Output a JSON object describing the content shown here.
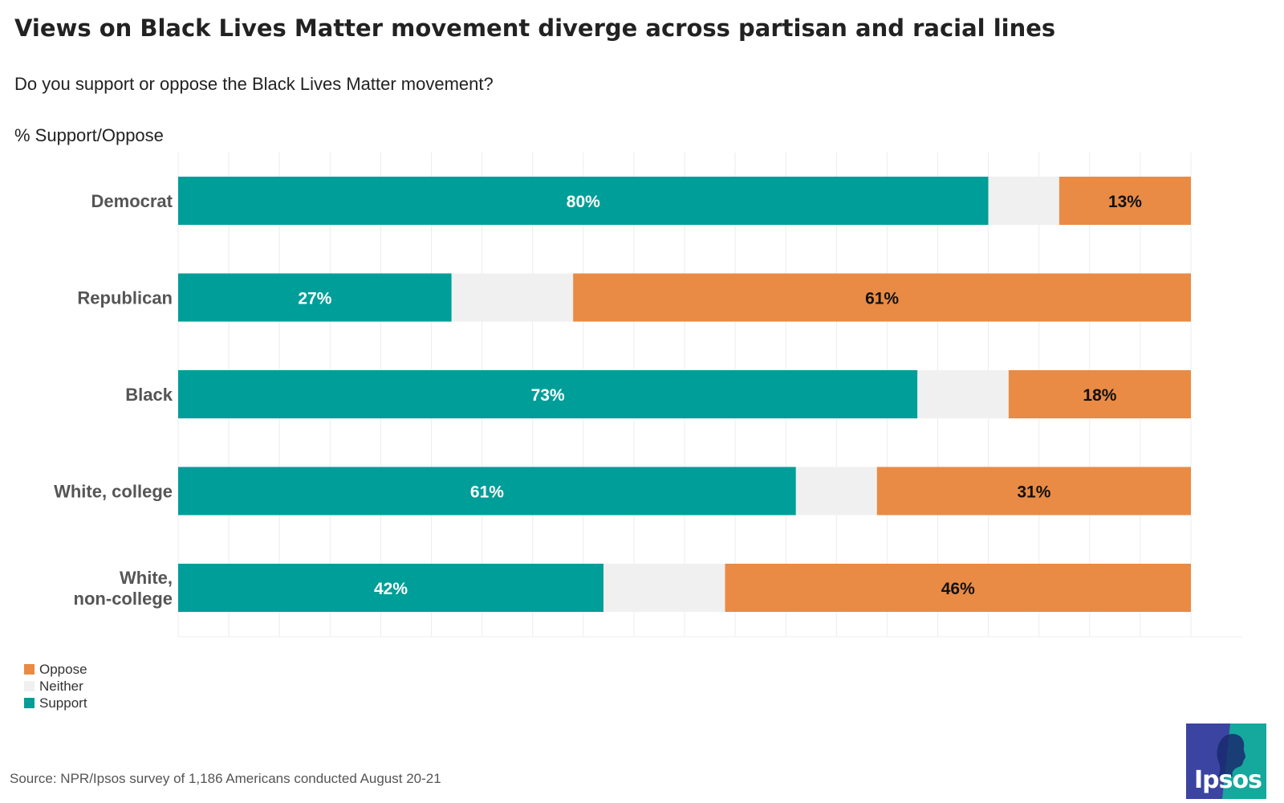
{
  "title": "Views on Black Lives Matter movement diverge across partisan and racial lines",
  "subtitle": "Do you support or oppose the Black Lives Matter movement?",
  "unit_label": "% Support/Oppose",
  "source": "Source: NPR/Ipsos survey of 1,186 Americans conducted August 20-21",
  "logo_text": "Ipsos",
  "colors": {
    "support": "#009e99",
    "neither": "#f0f0f0",
    "oppose": "#e98b45",
    "logo_left": "#3b44a0",
    "logo_right": "#15a89d"
  },
  "legend": [
    {
      "name": "Oppose",
      "color": "#e98b45"
    },
    {
      "name": "Neither",
      "color": "#f0f0f0"
    },
    {
      "name": "Support",
      "color": "#009e99"
    }
  ],
  "chart_data": {
    "type": "bar",
    "orientation": "horizontal",
    "stacked": true,
    "categories": [
      [
        "Democrat"
      ],
      [
        "Republican"
      ],
      [
        "Black"
      ],
      [
        "White, college"
      ],
      [
        "White,",
        "non-college"
      ]
    ],
    "series": [
      {
        "name": "Support",
        "values": [
          80,
          27,
          73,
          61,
          42
        ],
        "labels": [
          "80%",
          "27%",
          "73%",
          "61%",
          "42%"
        ]
      },
      {
        "name": "Neither",
        "values": [
          7,
          12,
          9,
          8,
          12
        ],
        "labels": [
          "",
          "",
          "",
          "",
          ""
        ]
      },
      {
        "name": "Oppose",
        "values": [
          13,
          61,
          18,
          31,
          46
        ],
        "labels": [
          "13%",
          "61%",
          "18%",
          "31%",
          "46%"
        ]
      }
    ],
    "xlim": [
      0,
      100
    ],
    "grid": true,
    "legend_position": "bottom-left"
  }
}
